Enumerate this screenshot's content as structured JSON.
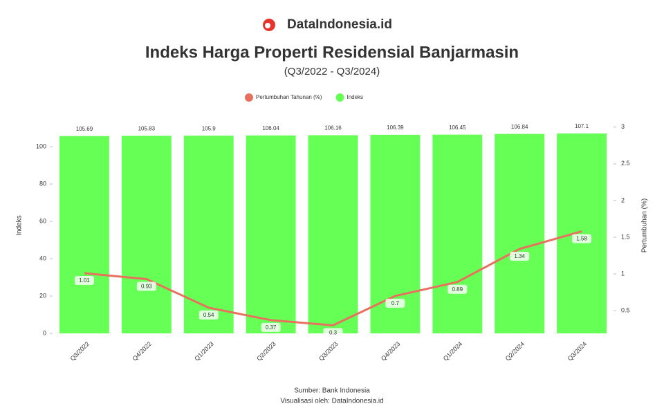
{
  "brand": "DataIndonesia.id",
  "chart_data": {
    "type": "bar-line",
    "title": "Indeks Harga Properti Residensial Banjarmasin",
    "subtitle": "(Q3/2022 - Q3/2024)",
    "categories": [
      "Q3/2022",
      "Q4/2022",
      "Q1/2023",
      "Q2/2023",
      "Q3/2023",
      "Q4/2023",
      "Q1/2024",
      "Q2/2024",
      "Q3/2024"
    ],
    "series": [
      {
        "name": "Pertumbuhan Tahunan (%)",
        "type": "line",
        "axis": "y2",
        "color": "#e8705e",
        "values": [
          1.01,
          0.93,
          0.54,
          0.37,
          0.3,
          0.7,
          0.89,
          1.34,
          1.58
        ]
      },
      {
        "name": "Indeks",
        "type": "bar",
        "color": "#66ff55",
        "values": [
          105.69,
          105.83,
          105.9,
          106.04,
          106.16,
          106.39,
          106.45,
          106.84,
          107.1
        ]
      }
    ],
    "ylabel": "Indeks",
    "y2label": "Pertumbuhan (%)",
    "ylim": [
      0,
      115.6
    ],
    "yticks": [
      0,
      20,
      40,
      60,
      80,
      100
    ],
    "y2lim": [
      0.19,
      3.13
    ],
    "y2ticks": [
      0.5,
      1,
      1.5,
      2,
      2.5,
      3
    ],
    "source": "Sumber: Bank Indonesia",
    "credit": "Visualisasi oleh: DataIndonesia.id"
  }
}
